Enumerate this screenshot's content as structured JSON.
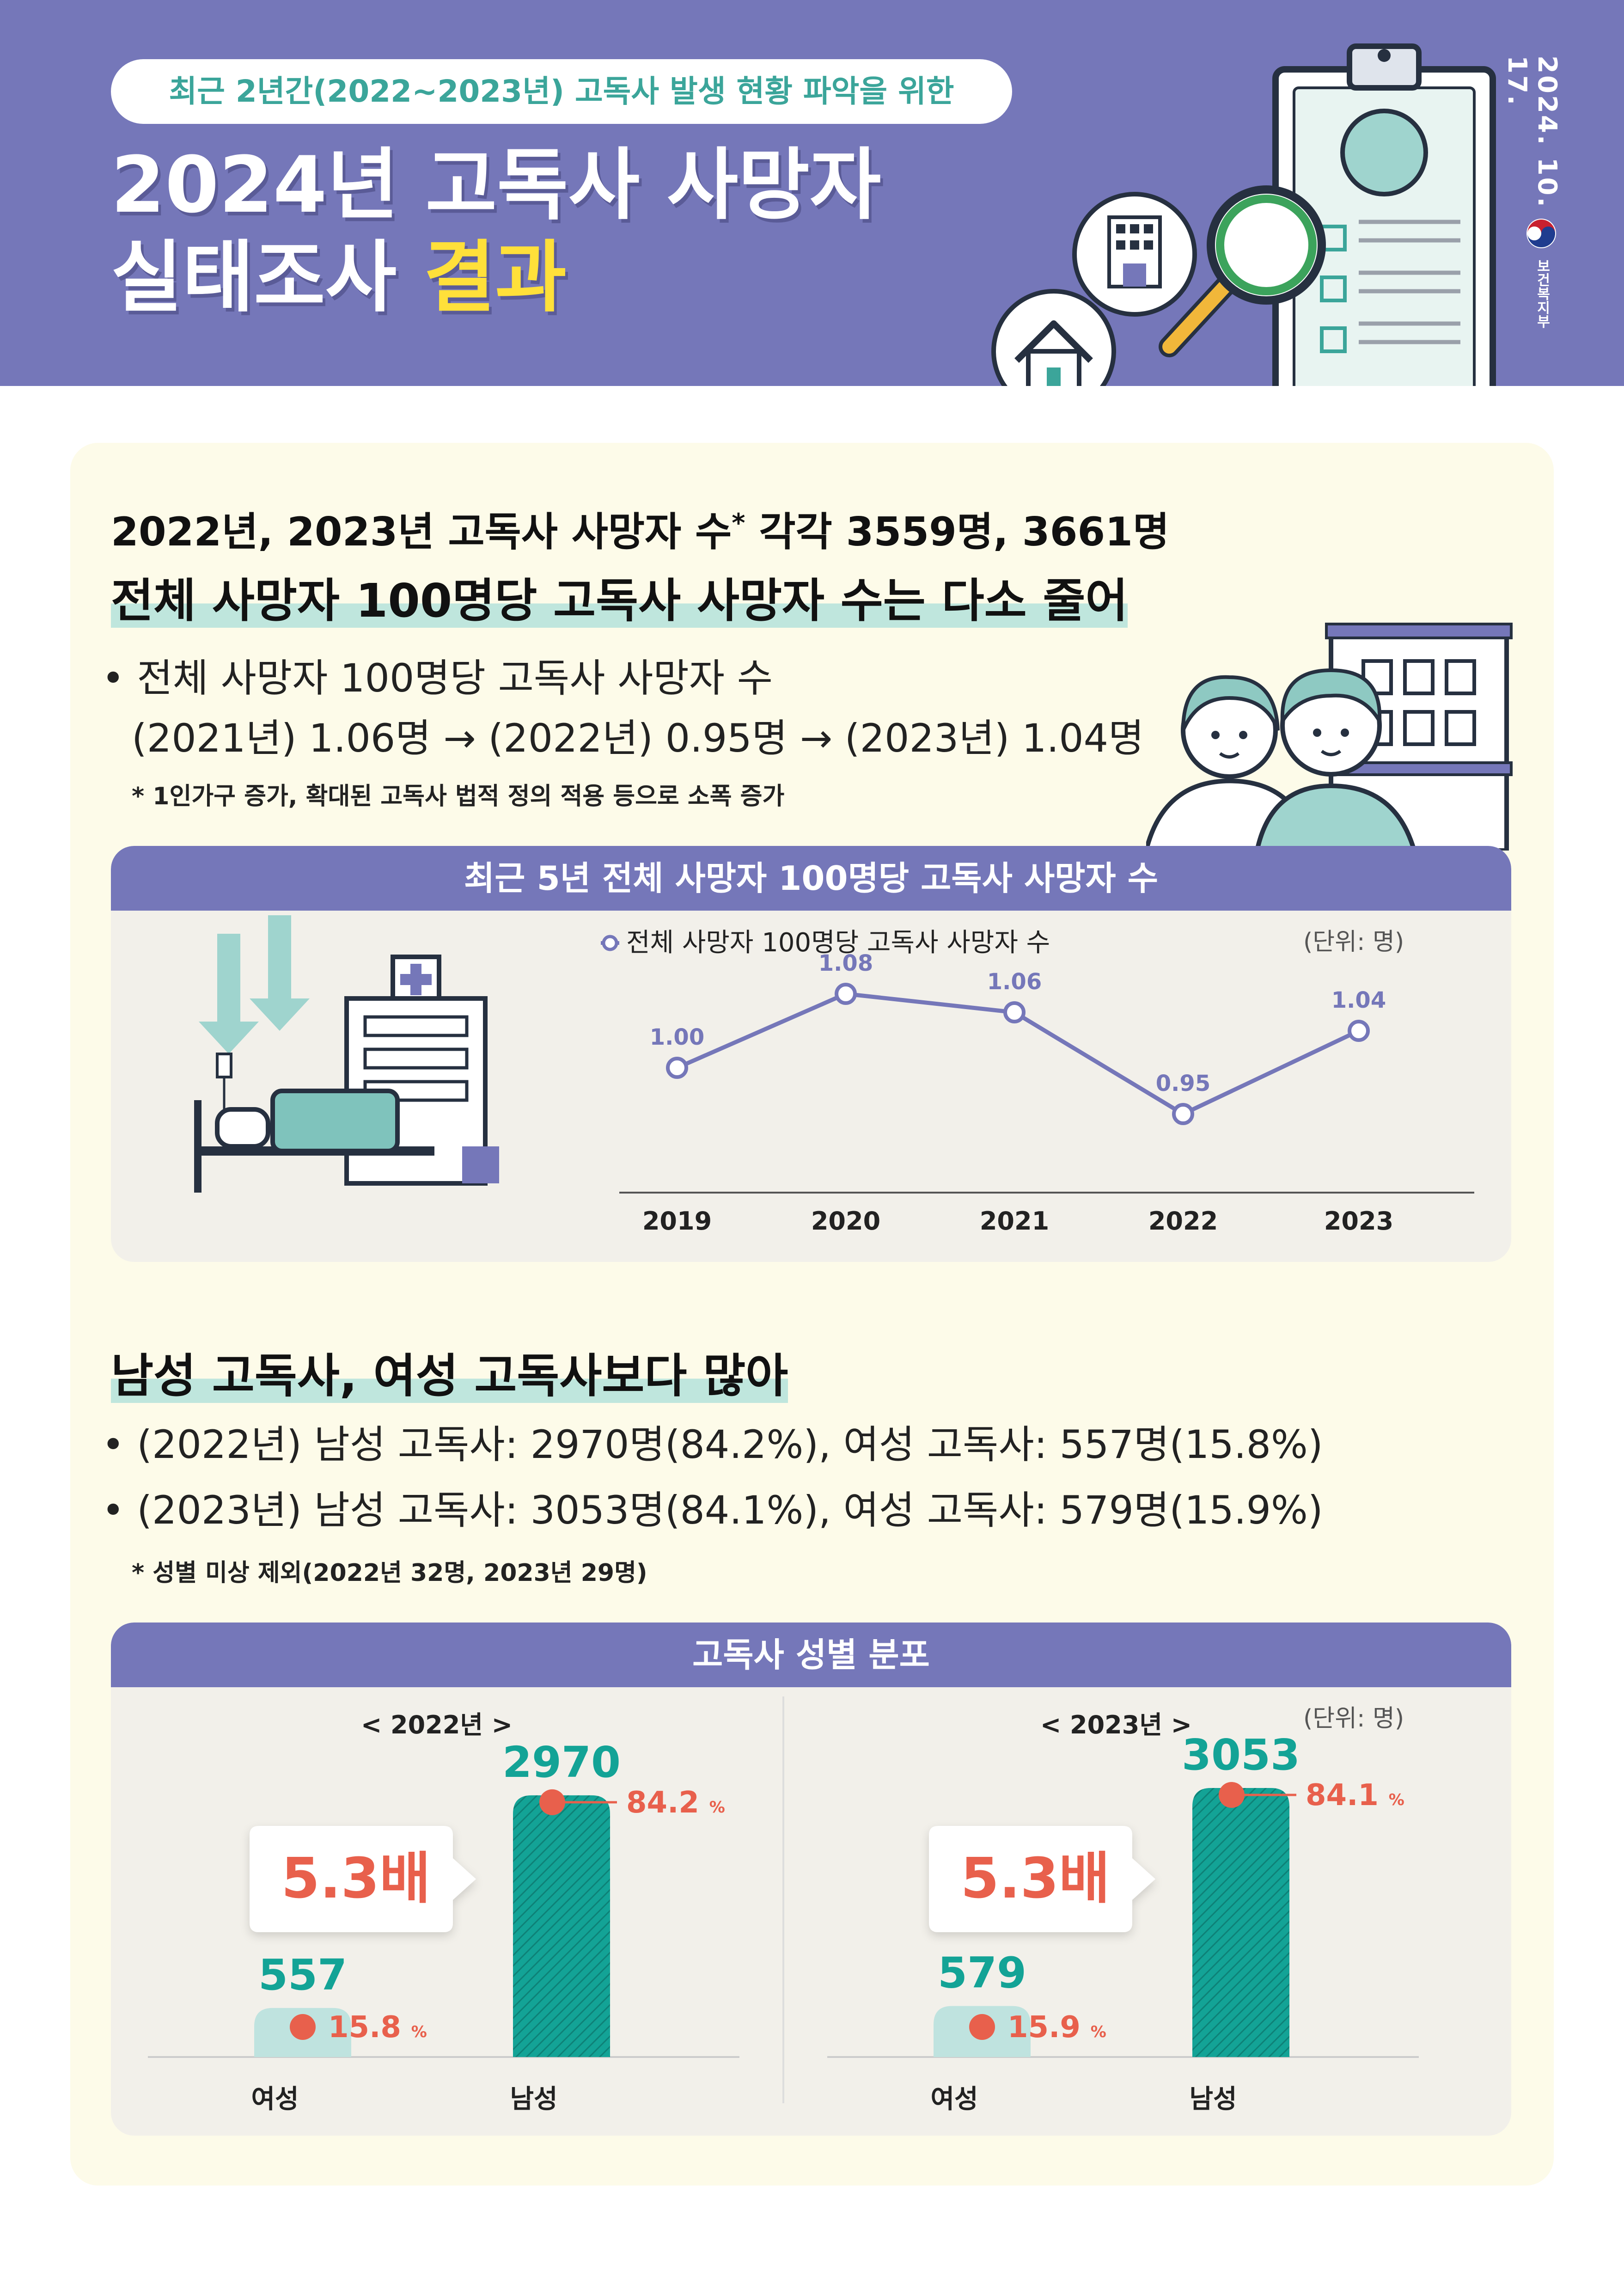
{
  "header": {
    "subtitle": "최근 2년간(2022~2023년) 고독사 발생 현황  파악을 위한",
    "title_line1": "2024년 고독사 사망자",
    "title_line2_pre": "실태조사 ",
    "title_line2_accent": "결과",
    "date": "2024. 10. 17.",
    "ministry": "보건복지부",
    "colors": {
      "banner": "#7577b9",
      "accent": "#ffe03a",
      "teal": "#3ba59a"
    },
    "icons": [
      "clipboard-icon",
      "magnifier-icon",
      "building-icon",
      "house-icon",
      "ministry-logo-icon"
    ]
  },
  "section1": {
    "line1": "2022년, 2023년 고독사 사망자 수",
    "line1_mark": "*",
    "line1_post": " 각각 3559명, 3661명",
    "line2": "전체 사망자 100명당 고독사 사망자 수는 다소 줄어",
    "bullet_1": "• 전체 사망자 100명당 고독사 사망자 수",
    "bullet_2": "(2021년) 1.06명 → (2022년) 0.95명 → (2023년) 1.04명",
    "note": "* 1인가구 증가, 확대된 고독사 법적 정의 적용 등으로 소폭 증가"
  },
  "card1": {
    "title": "최근 5년 전체 사망자 100명당 고독사 사망자 수",
    "unit": "(단위: 명)"
  },
  "section2": {
    "heading": "남성 고독사, 여성 고독사보다 많아",
    "bullet_1": "• (2022년) 남성 고독사: 2970명(84.2%), 여성 고독사: 557명(15.8%)",
    "bullet_2": "• (2023년) 남성 고독사: 3053명(84.1%), 여성 고독사: 579명(15.9%)",
    "note": "* 성별 미상 제외(2022년 32명, 2023년 29명)"
  },
  "card2": {
    "title": "고독사 성별 분포",
    "unit": "(단위: 명)"
  },
  "chart_data": [
    {
      "type": "line",
      "title": "최근 5년 전체 사망자 100명당 고독사 사망자 수",
      "x": [
        "2019",
        "2020",
        "2021",
        "2022",
        "2023"
      ],
      "series": [
        {
          "name": "전체 사망자 100명당 고독사 사망자 수",
          "values": [
            1.0,
            1.08,
            1.06,
            0.95,
            1.04
          ],
          "labels": [
            "1.00",
            "1.08",
            "1.06",
            "0.95",
            "1.04"
          ],
          "color": "#7577b9"
        }
      ],
      "ylim": [
        0.9,
        1.1
      ],
      "grid": false,
      "legend": "top-center"
    },
    {
      "type": "bar",
      "title": "< 2022년 >",
      "categories": [
        "여성",
        "남성"
      ],
      "values": [
        557,
        2970
      ],
      "value_labels": [
        "557",
        "2970"
      ],
      "percent": [
        15.8,
        84.2
      ],
      "percent_labels": [
        "15.8",
        "84.2"
      ],
      "percent_unit": "%",
      "ratio_label": "5.3배",
      "ylim": [
        0,
        3200
      ]
    },
    {
      "type": "bar",
      "title": "< 2023년 >",
      "categories": [
        "여성",
        "남성"
      ],
      "values": [
        579,
        3053
      ],
      "value_labels": [
        "579",
        "3053"
      ],
      "percent": [
        15.9,
        84.1
      ],
      "percent_labels": [
        "15.9",
        "84.1"
      ],
      "percent_unit": "%",
      "ratio_label": "5.3배",
      "ylim": [
        0,
        3200
      ]
    }
  ]
}
